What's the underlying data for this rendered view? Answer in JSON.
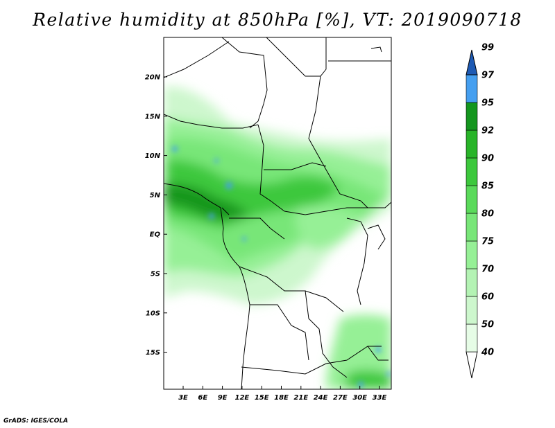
{
  "title": "Relative humidity at 850hPa [%], VT: 2019090718",
  "credit": "GrADS: IGES/COLA",
  "map": {
    "lat_labels": [
      "20N",
      "15N",
      "10N",
      "5N",
      "EQ",
      "5S",
      "10S",
      "15S"
    ],
    "lon_labels": [
      "3E",
      "6E",
      "9E",
      "12E",
      "15E",
      "18E",
      "21E",
      "24E",
      "27E",
      "30E",
      "33E"
    ]
  },
  "colorbar": {
    "levels": [
      "40",
      "50",
      "60",
      "70",
      "75",
      "80",
      "85",
      "90",
      "92",
      "95",
      "97",
      "99"
    ],
    "colors": [
      "#ffffff",
      "#e6fce6",
      "#cdf7cd",
      "#b4f3b4",
      "#96f096",
      "#78e678",
      "#5ada5a",
      "#3cc83c",
      "#28b428",
      "#14961e",
      "#459ff0",
      "#2e78dc",
      "#1e5ab4"
    ]
  }
}
